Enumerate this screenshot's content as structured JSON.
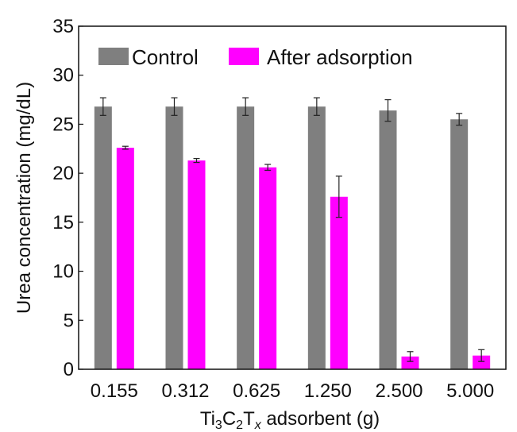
{
  "chart_data": {
    "type": "bar",
    "categories": [
      "0.155",
      "0.312",
      "0.625",
      "1.250",
      "2.500",
      "5.000"
    ],
    "series": [
      {
        "name": "Control",
        "color": "#7f7f7f",
        "values": [
          26.8,
          26.8,
          26.8,
          26.8,
          26.4,
          25.5
        ],
        "errors": [
          0.9,
          0.9,
          0.9,
          0.9,
          1.1,
          0.6
        ]
      },
      {
        "name": "After adsorption",
        "color": "#ff00ff",
        "values": [
          22.6,
          21.3,
          20.6,
          17.6,
          1.3,
          1.4
        ],
        "errors": [
          0.15,
          0.2,
          0.3,
          2.1,
          0.5,
          0.6
        ]
      }
    ],
    "ylabel": "Urea concentration (mg/dL)",
    "xlabel": {
      "prefix": "Ti",
      "sub1": "3",
      "mid": "C",
      "sub2": "2",
      "t": "T",
      "sub3": "x",
      "suffix": " adsorbent (g)"
    },
    "ylim": [
      0,
      35
    ],
    "yticks": [
      "0",
      "5",
      "10",
      "15",
      "20",
      "25",
      "30",
      "35"
    ],
    "grid": false,
    "legend": "top"
  }
}
